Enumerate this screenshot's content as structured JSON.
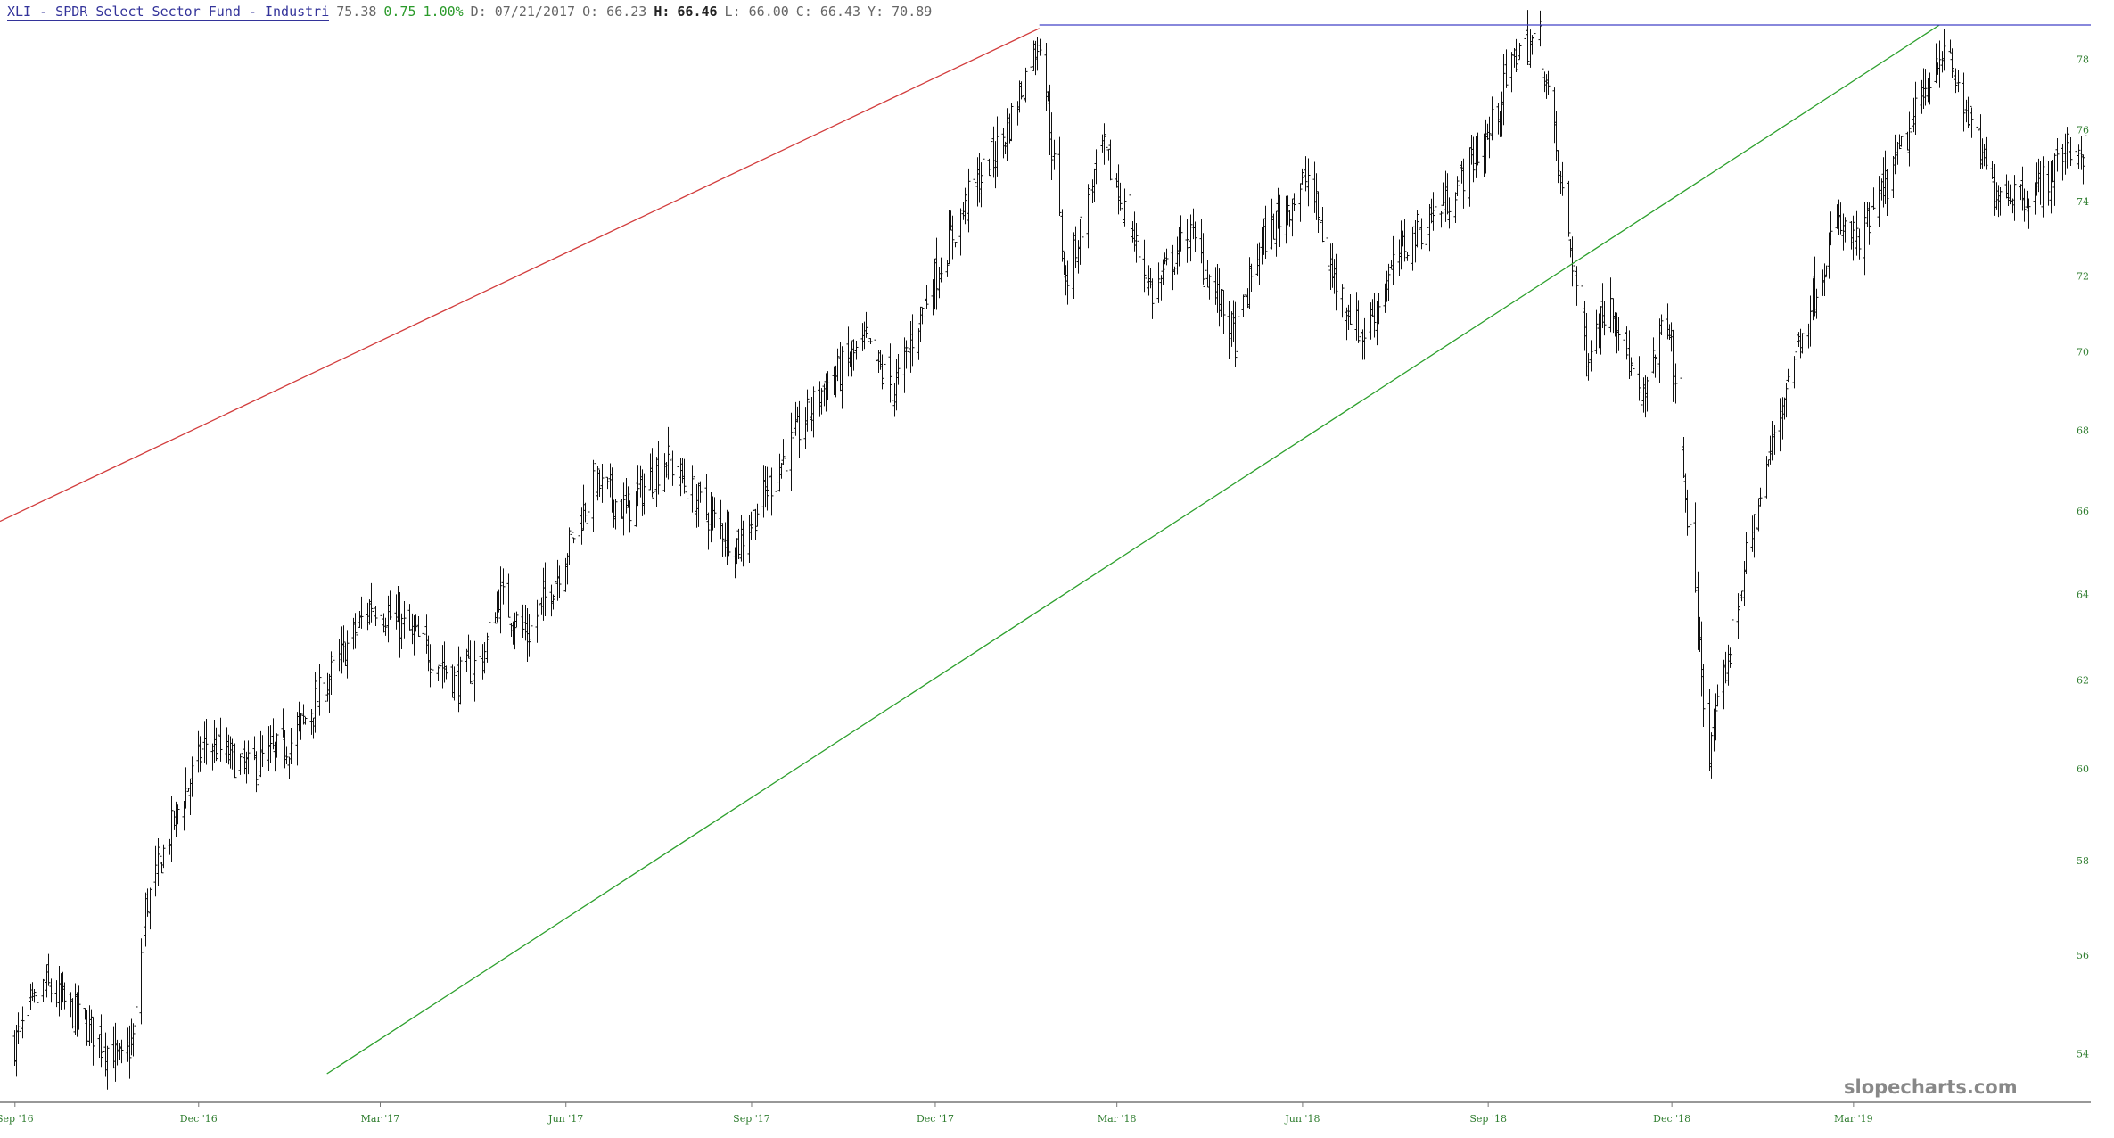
{
  "header": {
    "symbol_title": "XLI - SPDR Select Sector Fund - Industri",
    "last": "75.38",
    "change": "0.75",
    "change_pct": "1.00%",
    "date": "D: 07/21/2017",
    "open": "O: 66.23",
    "high_label": "H:",
    "high_value": "66.46",
    "low": "L: 66.00",
    "close": "C: 66.43",
    "y": "Y: 70.89"
  },
  "watermark": "slopecharts.com",
  "colors": {
    "bars": "#111111",
    "up_trend": "#2da02d",
    "upper_trend": "#d23c3c",
    "top_line": "#4040c8",
    "tick_text": "#2f7d2f"
  },
  "chart_data": {
    "type": "ohlc",
    "title": "XLI - SPDR Select Sector Fund - Industri",
    "x_ticks": [
      "Sep '16",
      "Dec '16",
      "Mar '17",
      "Jun '17",
      "Sep '17",
      "Dec '17",
      "Mar '18",
      "Jun '18",
      "Sep '18",
      "Dec '18",
      "Mar '19"
    ],
    "y_ticks": [
      54,
      56,
      58,
      60,
      62,
      64,
      66,
      68,
      70,
      72,
      74,
      76,
      78
    ],
    "x_range": [
      "2016-08-29",
      "2019-07-01"
    ],
    "y_range": [
      53.6,
      79.0
    ],
    "grid": false,
    "y_scale": "log",
    "keypoints": [
      [
        "2016-09-05",
        54.2
      ],
      [
        "2016-09-20",
        55.4
      ],
      [
        "2016-10-10",
        54.6
      ],
      [
        "2016-10-28",
        53.8
      ],
      [
        "2016-11-03",
        54.3
      ],
      [
        "2016-11-09",
        57.0
      ],
      [
        "2016-11-25",
        59.1
      ],
      [
        "2016-12-09",
        60.6
      ],
      [
        "2016-12-30",
        60.0
      ],
      [
        "2017-01-20",
        60.6
      ],
      [
        "2017-02-10",
        62.2
      ],
      [
        "2017-03-01",
        63.8
      ],
      [
        "2017-03-20",
        63.1
      ],
      [
        "2017-04-12",
        62.0
      ],
      [
        "2017-04-25",
        62.5
      ],
      [
        "2017-05-03",
        64.0
      ],
      [
        "2017-05-17",
        63.0
      ],
      [
        "2017-06-01",
        64.5
      ],
      [
        "2017-06-20",
        66.7
      ],
      [
        "2017-07-05",
        66.0
      ],
      [
        "2017-07-25",
        67.3
      ],
      [
        "2017-08-15",
        65.9
      ],
      [
        "2017-08-30",
        65.2
      ],
      [
        "2017-09-20",
        67.2
      ],
      [
        "2017-10-10",
        69.0
      ],
      [
        "2017-10-31",
        70.2
      ],
      [
        "2017-11-15",
        69.0
      ],
      [
        "2017-11-30",
        71.3
      ],
      [
        "2017-12-20",
        73.9
      ],
      [
        "2018-01-10",
        76.0
      ],
      [
        "2018-01-26",
        78.7
      ],
      [
        "2018-02-08",
        71.8
      ],
      [
        "2018-02-26",
        75.5
      ],
      [
        "2018-03-23",
        71.5
      ],
      [
        "2018-04-10",
        73.2
      ],
      [
        "2018-05-03",
        70.3
      ],
      [
        "2018-05-15",
        72.8
      ],
      [
        "2018-06-08",
        74.7
      ],
      [
        "2018-06-20",
        72.0
      ],
      [
        "2018-07-05",
        70.4
      ],
      [
        "2018-07-25",
        72.8
      ],
      [
        "2018-08-15",
        74.0
      ],
      [
        "2018-09-05",
        75.8
      ],
      [
        "2018-09-20",
        78.3
      ],
      [
        "2018-10-01",
        78.6
      ],
      [
        "2018-10-11",
        74.5
      ],
      [
        "2018-10-24",
        70.0
      ],
      [
        "2018-11-05",
        71.5
      ],
      [
        "2018-11-20",
        68.5
      ],
      [
        "2018-12-03",
        71.0
      ],
      [
        "2018-12-24",
        60.2
      ],
      [
        "2019-01-10",
        64.6
      ],
      [
        "2019-02-01",
        69.4
      ],
      [
        "2019-02-25",
        73.4
      ],
      [
        "2019-03-08",
        72.8
      ],
      [
        "2019-04-01",
        75.8
      ],
      [
        "2019-04-17",
        78.3
      ],
      [
        "2019-04-24",
        77.5
      ],
      [
        "2019-05-13",
        74.4
      ],
      [
        "2019-06-03",
        74.2
      ],
      [
        "2019-06-20",
        75.5
      ],
      [
        "2019-06-28",
        75.4
      ]
    ],
    "trendlines": [
      {
        "color": "#d23c3c",
        "points": [
          [
            "2016-08-29",
            65.75
          ],
          [
            "2018-01-26",
            78.9
          ]
        ]
      },
      {
        "color": "#2da02d",
        "points": [
          [
            "2017-02-07",
            53.6
          ],
          [
            "2019-04-17",
            79.0
          ]
        ]
      },
      {
        "color": "#4040c8",
        "points": [
          [
            "2018-01-26",
            79.0
          ],
          [
            "2019-07-01",
            79.0
          ]
        ]
      }
    ]
  }
}
